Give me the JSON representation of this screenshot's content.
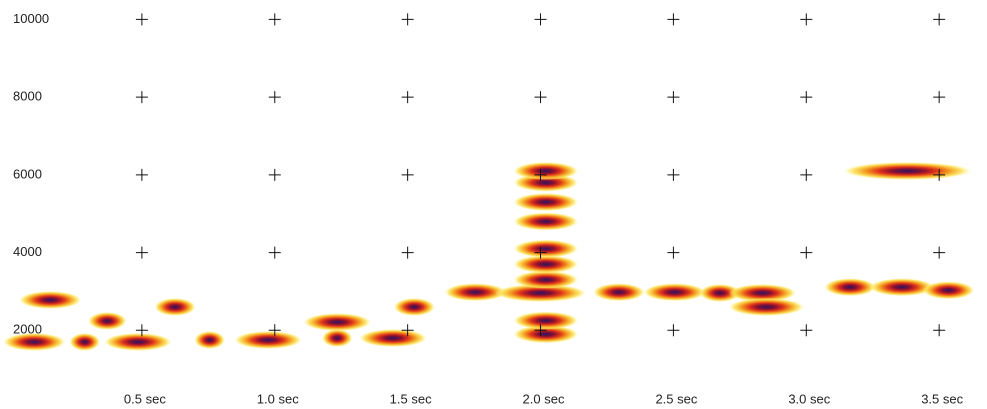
{
  "chart_data": {
    "type": "spectrogram",
    "xlim": [
      0,
      3.68
    ],
    "ylim": [
      0,
      10500
    ],
    "xticks": [
      {
        "value": 0.5,
        "label": "0.5 sec"
      },
      {
        "value": 1.0,
        "label": "1.0 sec"
      },
      {
        "value": 1.5,
        "label": "1.5 sec"
      },
      {
        "value": 2.0,
        "label": "2.0 sec"
      },
      {
        "value": 2.5,
        "label": "2.5 sec"
      },
      {
        "value": 3.0,
        "label": "3.0 sec"
      },
      {
        "value": 3.5,
        "label": "3.5 sec"
      }
    ],
    "yticks": [
      2000,
      4000,
      6000,
      8000,
      10000
    ],
    "grid": "crosses",
    "notes": [
      {
        "start": 0.0,
        "end": 0.19,
        "freq": 1700
      },
      {
        "start": 0.06,
        "end": 0.25,
        "freq": 2780
      },
      {
        "start": 0.25,
        "end": 0.32,
        "freq": 1700
      },
      {
        "start": 0.32,
        "end": 0.42,
        "freq": 2240
      },
      {
        "start": 0.38,
        "end": 0.59,
        "freq": 1700
      },
      {
        "start": 0.57,
        "end": 0.68,
        "freq": 2600
      },
      {
        "start": 0.72,
        "end": 0.79,
        "freq": 1750
      },
      {
        "start": 0.87,
        "end": 1.08,
        "freq": 1750
      },
      {
        "start": 1.13,
        "end": 1.34,
        "freq": 2210
      },
      {
        "start": 1.2,
        "end": 1.27,
        "freq": 1800
      },
      {
        "start": 1.34,
        "end": 1.55,
        "freq": 1800
      },
      {
        "start": 1.47,
        "end": 1.58,
        "freq": 2600
      },
      {
        "start": 1.66,
        "end": 1.85,
        "freq": 2980
      },
      {
        "start": 1.85,
        "end": 2.15,
        "freq": 2960
      },
      {
        "start": 1.92,
        "end": 2.12,
        "freq": 1900
      },
      {
        "start": 1.92,
        "end": 2.12,
        "freq": 2250
      },
      {
        "start": 1.92,
        "end": 2.12,
        "freq": 3300
      },
      {
        "start": 1.92,
        "end": 2.12,
        "freq": 3700
      },
      {
        "start": 1.92,
        "end": 2.12,
        "freq": 4100
      },
      {
        "start": 1.92,
        "end": 2.12,
        "freq": 4800
      },
      {
        "start": 1.92,
        "end": 2.12,
        "freq": 5300
      },
      {
        "start": 1.92,
        "end": 2.12,
        "freq": 5800
      },
      {
        "start": 1.92,
        "end": 2.12,
        "freq": 6100
      },
      {
        "start": 2.22,
        "end": 2.37,
        "freq": 2980
      },
      {
        "start": 2.41,
        "end": 2.6,
        "freq": 2980
      },
      {
        "start": 2.62,
        "end": 2.73,
        "freq": 2960
      },
      {
        "start": 2.73,
        "end": 2.94,
        "freq": 2960
      },
      {
        "start": 2.73,
        "end": 2.97,
        "freq": 2600
      },
      {
        "start": 3.09,
        "end": 3.24,
        "freq": 3110
      },
      {
        "start": 3.26,
        "end": 3.46,
        "freq": 3110
      },
      {
        "start": 3.46,
        "end": 3.61,
        "freq": 3030
      },
      {
        "start": 3.16,
        "end": 3.6,
        "freq": 6100
      }
    ]
  }
}
